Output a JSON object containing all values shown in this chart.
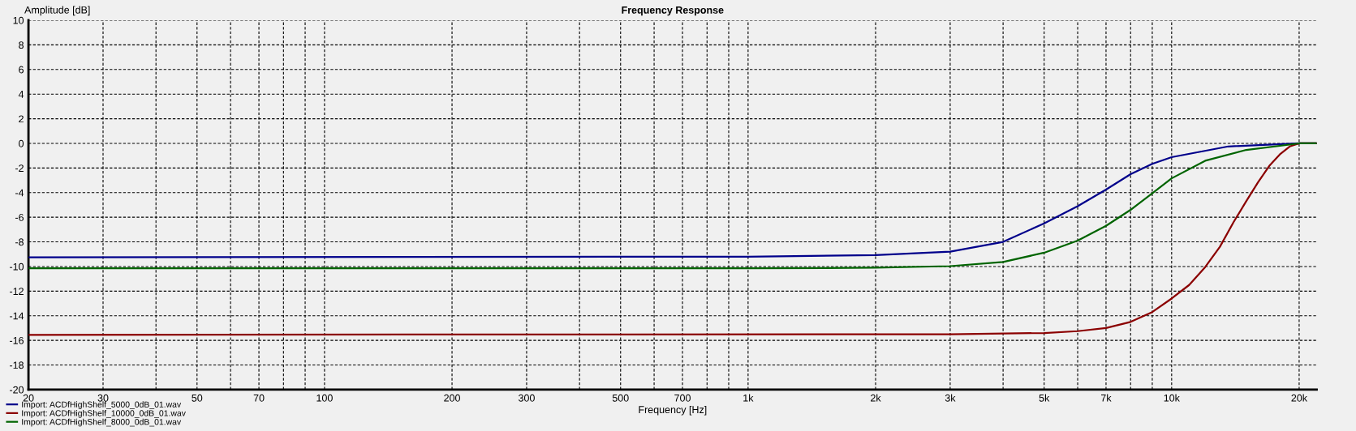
{
  "chart_data": {
    "type": "line",
    "title": "Frequency Response",
    "xlabel": "Frequency [Hz]",
    "ylabel": "Amplitude [dB]",
    "log": "x",
    "grid": true,
    "legend": "bottom left",
    "line_style": "solid",
    "marker": "none",
    "xlim": [
      20,
      22000
    ],
    "ylim": [
      -20,
      10
    ],
    "xticks": [
      20,
      30,
      {
        "value": 40,
        "label": null
      },
      50,
      {
        "value": 60,
        "label": null
      },
      70,
      {
        "value": 80,
        "label": null
      },
      {
        "value": 90,
        "label": null
      },
      100,
      200,
      300,
      {
        "value": 400,
        "label": null
      },
      500,
      {
        "value": 600,
        "label": null
      },
      700,
      {
        "value": 800,
        "label": null
      },
      {
        "value": 900,
        "label": null
      },
      {
        "value": 1000,
        "label": "1k"
      },
      {
        "value": 2000,
        "label": "2k"
      },
      {
        "value": 3000,
        "label": "3k"
      },
      {
        "value": 4000,
        "label": null
      },
      {
        "value": 5000,
        "label": "5k"
      },
      {
        "value": 6000,
        "label": null
      },
      {
        "value": 7000,
        "label": "7k"
      },
      {
        "value": 8000,
        "label": null
      },
      {
        "value": 9000,
        "label": null
      },
      {
        "value": 10000,
        "label": "10k"
      },
      {
        "value": 20000,
        "label": "20k"
      }
    ],
    "yticks": [
      -20,
      -18,
      -16,
      -14,
      -12,
      -10,
      -8,
      -6,
      -4,
      -2,
      0,
      2,
      4,
      6,
      8,
      10
    ],
    "series": [
      {
        "name": "Import: ACDfHighShelf_5000_0dB_01.wav",
        "color": "#00008b",
        "x": [
          20,
          1000,
          2000,
          3000,
          4000,
          5000,
          6000,
          7000,
          8000,
          9000,
          10000,
          13600,
          20000,
          22000
        ],
        "values": [
          -9.25,
          -9.2,
          -9.07,
          -8.79,
          -8.0,
          -6.5,
          -5.1,
          -3.75,
          -2.5,
          -1.66,
          -1.12,
          -0.25,
          0,
          0
        ]
      },
      {
        "name": "Import: ACDfHighShelf_10000_0dB_01.wav",
        "color": "#8b0000",
        "x": [
          20,
          3000,
          5000,
          6000,
          7000,
          8000,
          9000,
          10000,
          11000,
          12000,
          13000,
          14000,
          15000,
          16000,
          17000,
          18000,
          19000,
          20000,
          22000
        ],
        "values": [
          -15.55,
          -15.5,
          -15.4,
          -15.25,
          -15.0,
          -14.5,
          -13.7,
          -12.6,
          -11.5,
          -10.05,
          -8.4,
          -6.4,
          -4.7,
          -3.15,
          -1.83,
          -0.9,
          -0.25,
          0,
          0
        ]
      },
      {
        "name": "Import: ACDfHighShelf_8000_0dB_01.wav",
        "color": "#006400",
        "x": [
          20,
          1000,
          2000,
          3000,
          4000,
          5000,
          6000,
          7000,
          8000,
          9000,
          10000,
          12000,
          15000,
          20000,
          22000
        ],
        "values": [
          -10.15,
          -10.15,
          -10.1,
          -9.97,
          -9.63,
          -8.88,
          -7.9,
          -6.7,
          -5.4,
          -4.05,
          -2.84,
          -1.41,
          -0.53,
          0,
          0
        ]
      }
    ]
  }
}
